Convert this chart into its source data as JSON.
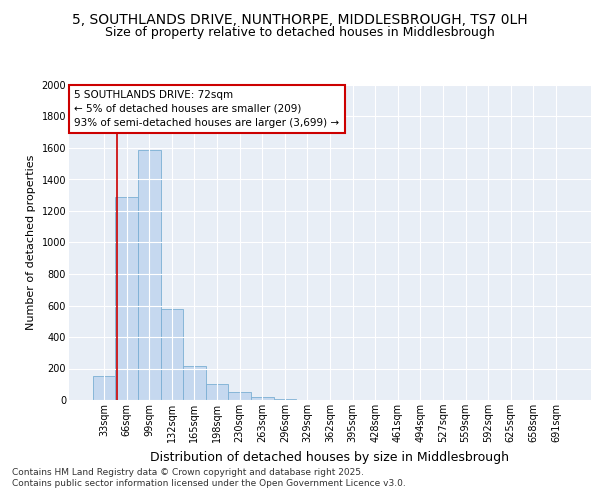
{
  "title": "5, SOUTHLANDS DRIVE, NUNTHORPE, MIDDLESBROUGH, TS7 0LH",
  "subtitle": "Size of property relative to detached houses in Middlesbrough",
  "xlabel": "Distribution of detached houses by size in Middlesbrough",
  "ylabel": "Number of detached properties",
  "categories": [
    "33sqm",
    "66sqm",
    "99sqm",
    "132sqm",
    "165sqm",
    "198sqm",
    "230sqm",
    "263sqm",
    "296sqm",
    "329sqm",
    "362sqm",
    "395sqm",
    "428sqm",
    "461sqm",
    "494sqm",
    "527sqm",
    "559sqm",
    "592sqm",
    "625sqm",
    "658sqm",
    "691sqm"
  ],
  "values": [
    150,
    1290,
    1590,
    580,
    215,
    100,
    50,
    20,
    5,
    0,
    0,
    0,
    0,
    0,
    0,
    0,
    0,
    0,
    0,
    0,
    0
  ],
  "bar_color": "#c5d8ef",
  "bar_edge_color": "#7bafd4",
  "vline_color": "#cc0000",
  "vline_pos": 0.575,
  "annotation_text": "5 SOUTHLANDS DRIVE: 72sqm\n← 5% of detached houses are smaller (209)\n93% of semi-detached houses are larger (3,699) →",
  "annotation_box_facecolor": "#ffffff",
  "annotation_box_edgecolor": "#cc0000",
  "ylim": [
    0,
    2000
  ],
  "yticks": [
    0,
    200,
    400,
    600,
    800,
    1000,
    1200,
    1400,
    1600,
    1800,
    2000
  ],
  "bg_color": "#ffffff",
  "plot_bg_color": "#e8eef6",
  "grid_color": "#ffffff",
  "footer": "Contains HM Land Registry data © Crown copyright and database right 2025.\nContains public sector information licensed under the Open Government Licence v3.0.",
  "title_fontsize": 10,
  "subtitle_fontsize": 9,
  "xlabel_fontsize": 9,
  "ylabel_fontsize": 8,
  "tick_fontsize": 7,
  "annotation_fontsize": 7.5,
  "footer_fontsize": 6.5
}
